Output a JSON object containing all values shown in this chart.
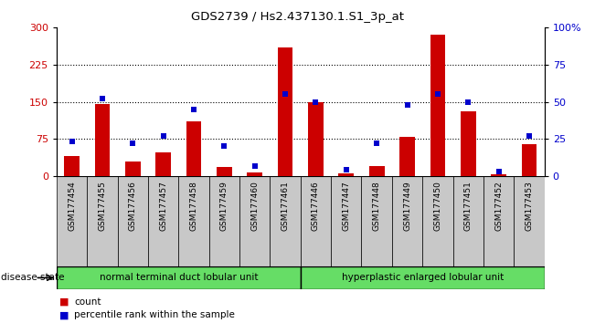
{
  "title": "GDS2739 / Hs2.437130.1.S1_3p_at",
  "samples": [
    "GSM177454",
    "GSM177455",
    "GSM177456",
    "GSM177457",
    "GSM177458",
    "GSM177459",
    "GSM177460",
    "GSM177461",
    "GSM177446",
    "GSM177447",
    "GSM177448",
    "GSM177449",
    "GSM177450",
    "GSM177451",
    "GSM177452",
    "GSM177453"
  ],
  "counts": [
    40,
    145,
    30,
    48,
    110,
    18,
    8,
    260,
    150,
    5,
    20,
    80,
    285,
    130,
    3,
    65
  ],
  "percentiles": [
    23,
    52,
    22,
    27,
    45,
    20,
    7,
    55,
    50,
    4,
    22,
    48,
    55,
    50,
    3,
    27
  ],
  "group1_label": "normal terminal duct lobular unit",
  "group2_label": "hyperplastic enlarged lobular unit",
  "group1_count": 8,
  "group2_count": 8,
  "bar_color": "#cc0000",
  "dot_color": "#0000cc",
  "ylim_left": [
    0,
    300
  ],
  "ylim_right": [
    0,
    100
  ],
  "yticks_left": [
    0,
    75,
    150,
    225,
    300
  ],
  "yticks_right": [
    0,
    25,
    50,
    75,
    100
  ],
  "grid_values": [
    75,
    150,
    225
  ],
  "disease_state_label": "disease state",
  "legend_count_label": "count",
  "legend_percentile_label": "percentile rank within the sample",
  "group1_color": "#66dd66",
  "group2_color": "#66dd66",
  "label_bg_color": "#c8c8c8",
  "bar_width": 0.5
}
